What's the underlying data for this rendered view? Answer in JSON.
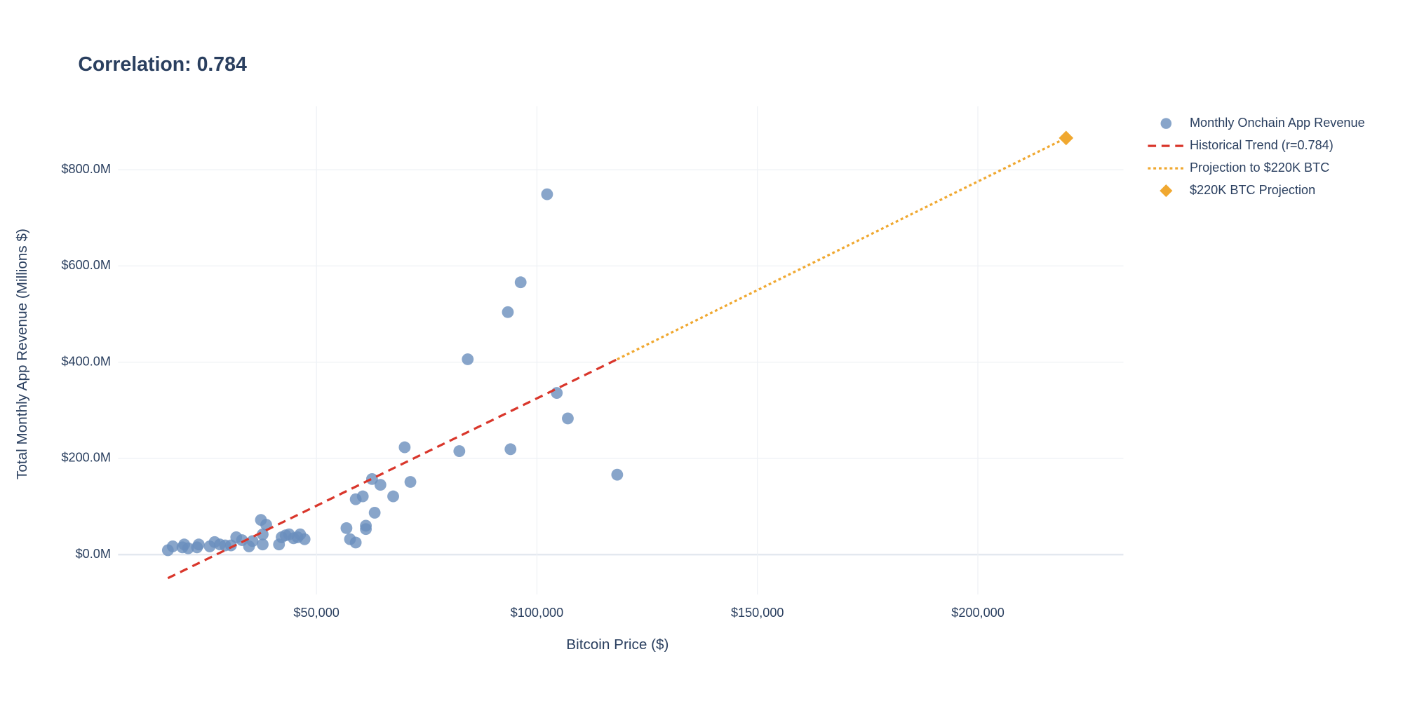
{
  "chart_data": {
    "type": "scatter",
    "title": "Correlation: 0.784",
    "x_label": "Bitcoin Price ($)",
    "y_label": "Total Monthly App Revenue (Millions $)",
    "xlim": [
      5000,
      233000
    ],
    "ylim": [
      -83,
      932
    ],
    "xticks": [
      {
        "value": 50000,
        "label": "$50,000"
      },
      {
        "value": 100000,
        "label": "$100,000"
      },
      {
        "value": 150000,
        "label": "$150,000"
      },
      {
        "value": 200000,
        "label": "$200,000"
      }
    ],
    "yticks": [
      {
        "value": 0,
        "label": "$0.0M"
      },
      {
        "value": 200,
        "label": "$200.0M"
      },
      {
        "value": 400,
        "label": "$400.0M"
      },
      {
        "value": 600,
        "label": "$600.0M"
      },
      {
        "value": 800,
        "label": "$800.0M"
      }
    ],
    "grid": true,
    "legend": "right",
    "series": [
      {
        "name": "Monthly Onchain App Revenue",
        "color": "#6a8fbd",
        "mode": "markers",
        "marker": "circle",
        "x": [
          16300,
          17400,
          19600,
          20000,
          20900,
          22900,
          23300,
          25800,
          26900,
          28100,
          29300,
          30600,
          31800,
          33100,
          34700,
          35500,
          37400,
          37800,
          37800,
          38600,
          41500,
          42100,
          43000,
          43800,
          44800,
          45700,
          46300,
          47300,
          56800,
          57600,
          58900,
          58900,
          60500,
          61200,
          61200,
          62600,
          63200,
          64500,
          67400,
          70000,
          71300,
          82400,
          84300,
          93400,
          94000,
          96300,
          102300,
          104500,
          107000,
          118200
        ],
        "values": [
          9,
          17,
          15,
          21,
          13,
          15,
          21,
          17,
          26,
          21,
          19,
          19,
          36,
          30,
          17,
          28,
          72,
          21,
          42,
          62,
          21,
          36,
          40,
          42,
          34,
          36,
          42,
          32,
          55,
          32,
          25,
          115,
          121,
          53,
          60,
          157,
          87,
          145,
          121,
          223,
          151,
          215,
          406,
          504,
          219,
          566,
          749,
          336,
          283,
          166
        ]
      },
      {
        "name": "Historical Trend (r=0.784)",
        "color": "#d9362b",
        "mode": "lines",
        "dash": "dash",
        "x": [
          16300,
          118200
        ],
        "values": [
          -49,
          406
        ]
      },
      {
        "name": "Projection to $220K BTC",
        "color": "#f0a830",
        "mode": "lines",
        "dash": "dot",
        "x": [
          118200,
          220000
        ],
        "values": [
          406,
          866
        ]
      },
      {
        "name": "$220K BTC Projection",
        "color": "#f0a830",
        "mode": "markers",
        "marker": "diamond",
        "x": [
          220000
        ],
        "values": [
          866
        ]
      }
    ]
  }
}
